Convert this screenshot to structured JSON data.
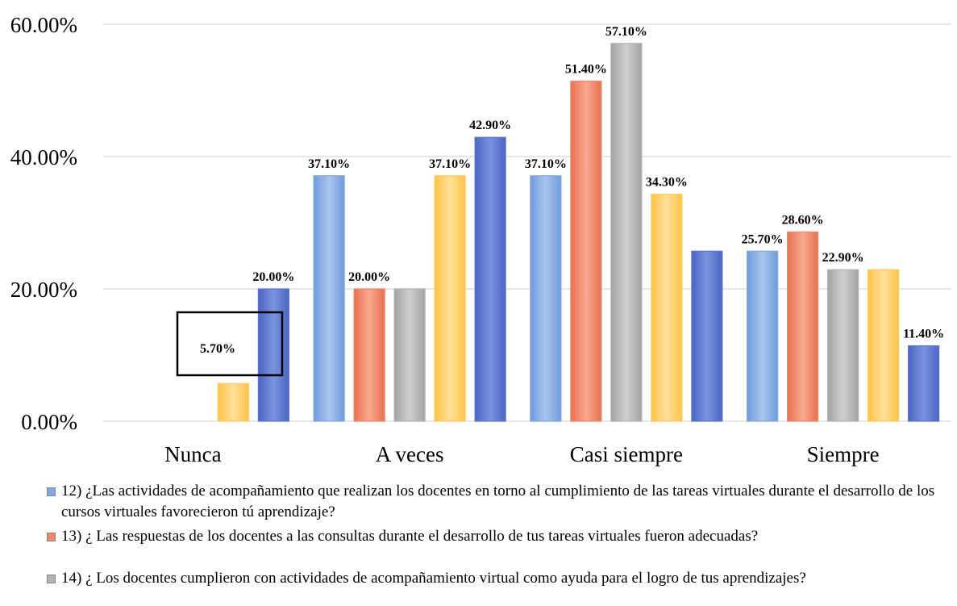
{
  "chart_data": {
    "type": "bar",
    "categories": [
      "Nunca",
      "A veces",
      "Casi siempre",
      "Siempre"
    ],
    "ylim": [
      0,
      60
    ],
    "yticks": [
      "0.00%",
      "20.00%",
      "40.00%",
      "60.00%"
    ],
    "grid": true,
    "legend_position": "bottom",
    "series": [
      {
        "name": "12) ¿Las actividades de acompañamiento que realizan los docentes en torno al cumplimiento de las tareas virtuales durante el desarrollo de los cursos virtuales favorecieron tú aprendizaje?",
        "color": "#7FA9E0",
        "values": [
          null,
          37.1,
          37.1,
          25.7
        ],
        "labels": [
          "",
          "37.10%",
          "37.10%",
          "25.70%"
        ]
      },
      {
        "name": "13) ¿ Las respuestas de los docentes a las consultas durante el desarrollo de tus tareas virtuales fueron adecuadas?",
        "color": "#F0866A",
        "values": [
          null,
          20.0,
          51.4,
          28.6
        ],
        "labels": [
          "",
          "20.00%",
          "51.40%",
          "28.60%"
        ]
      },
      {
        "name": "14) ¿ Los docentes cumplieron con actividades de acompañamiento virtual como ayuda para el logro de tus aprendizajes?",
        "color": "#B3B3B3",
        "values": [
          null,
          20.0,
          57.1,
          22.9
        ],
        "labels": [
          "",
          "",
          "57.10%",
          "22.90%"
        ]
      },
      {
        "name": "",
        "color": "#FFCC5C",
        "values": [
          5.7,
          37.1,
          34.3,
          22.9
        ],
        "labels": [
          "5.70%",
          "37.10%",
          "34.30%",
          ""
        ]
      },
      {
        "name": "",
        "color": "#5B77CF",
        "values": [
          20.0,
          42.9,
          25.7,
          11.4
        ],
        "labels": [
          "20.00%",
          "42.90%",
          "",
          "11.40%"
        ]
      }
    ]
  },
  "legend": [
    {
      "text": "12) ¿Las actividades de acompañamiento que realizan los docentes en torno al cumplimiento de las tareas virtuales durante el desarrollo de los cursos virtuales favorecieron tú aprendizaje?",
      "color": "#7FA9E0"
    },
    {
      "text": "13) ¿ Las respuestas de los docentes a las consultas durante el desarrollo de tus tareas virtuales fueron adecuadas?",
      "color": "#F0866A"
    },
    {
      "text": "14) ¿ Los docentes cumplieron con actividades de acompañamiento virtual como ayuda para el logro de tus aprendizajes?",
      "color": "#B3B3B3"
    }
  ]
}
